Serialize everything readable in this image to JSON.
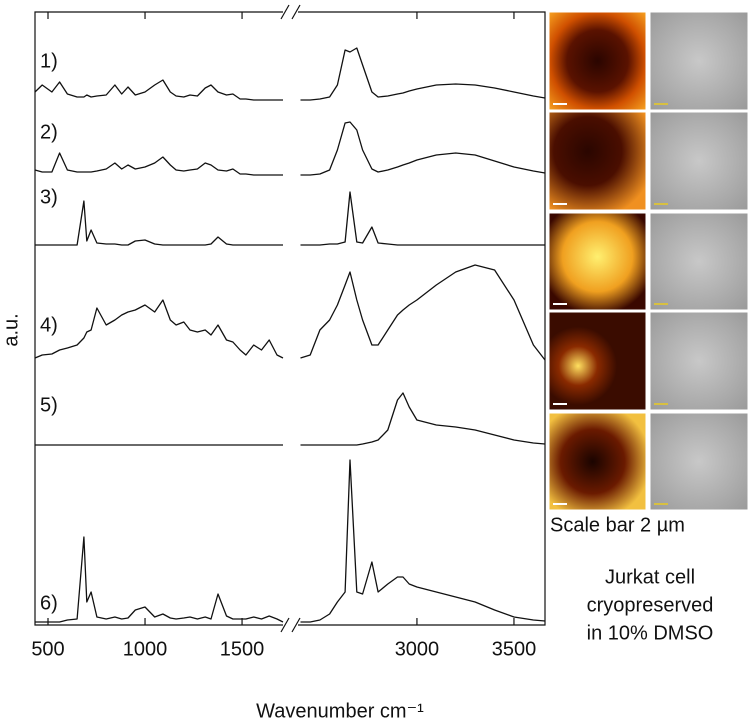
{
  "chart_data": {
    "type": "line",
    "xlabel": "Wavenumber cm⁻¹",
    "ylabel": "a.u.",
    "segments": [
      {
        "xlim": [
          433,
          1711
        ],
        "xticks": [
          500,
          1000,
          1500
        ]
      },
      {
        "xlim": [
          2387,
          3660
        ],
        "xticks": [
          3000,
          3500
        ]
      }
    ],
    "x": [
      433,
      470,
      520,
      560,
      600,
      650,
      685,
      700,
      722,
      752,
      800,
      845,
      880,
      912,
      950,
      1000,
      1050,
      1092,
      1130,
      1160,
      1200,
      1232,
      1270,
      1310,
      1340,
      1376,
      1420,
      1453,
      1490,
      1520,
      1560,
      1600,
      1640,
      1680,
      1711,
      2400,
      2450,
      2500,
      2550,
      2590,
      2630,
      2655,
      2690,
      2720,
      2768,
      2800,
      2850,
      2900,
      2928,
      2960,
      3000,
      3100,
      3200,
      3300,
      3400,
      3500,
      3600,
      3660
    ],
    "series": [
      {
        "name": "1)",
        "color": "#111111",
        "values": [
          8,
          15,
          8,
          18,
          6,
          3,
          3,
          5,
          3,
          4,
          5,
          15,
          6,
          13,
          5,
          8,
          15,
          20,
          8,
          4,
          3,
          5,
          4,
          12,
          15,
          8,
          5,
          6,
          1,
          1,
          0,
          0,
          0,
          0,
          0,
          0,
          0,
          1,
          3,
          15,
          50,
          48,
          52,
          35,
          8,
          3,
          4,
          6,
          7,
          9,
          11,
          15,
          16,
          15,
          12,
          8,
          4,
          2
        ]
      },
      {
        "name": "2)",
        "color": "#111111",
        "values": [
          5,
          3,
          3,
          22,
          5,
          3,
          3,
          3,
          3,
          4,
          6,
          12,
          6,
          10,
          6,
          8,
          12,
          18,
          10,
          5,
          4,
          5,
          6,
          12,
          10,
          5,
          4,
          6,
          1,
          1,
          0,
          0,
          0,
          0,
          0,
          0,
          0,
          1,
          5,
          25,
          52,
          53,
          45,
          25,
          6,
          3,
          5,
          8,
          10,
          12,
          15,
          20,
          22,
          20,
          14,
          8,
          4,
          2
        ]
      },
      {
        "name": "3)",
        "color": "#111111",
        "values": [
          0,
          0,
          0,
          0,
          0,
          0,
          44,
          4,
          15,
          2,
          1,
          1,
          0,
          0,
          4,
          5,
          1,
          0,
          0,
          0,
          0,
          0,
          0,
          0,
          1,
          8,
          1,
          0,
          0,
          0,
          0,
          0,
          0,
          0,
          0,
          0,
          0,
          0,
          1,
          1,
          3,
          53,
          3,
          2,
          18,
          2,
          1,
          0,
          0,
          0,
          0,
          0,
          0,
          0,
          0,
          0,
          0,
          0
        ]
      },
      {
        "name": "4)",
        "color": "#111111",
        "values": [
          2,
          5,
          6,
          10,
          12,
          15,
          22,
          28,
          30,
          52,
          35,
          40,
          45,
          48,
          50,
          55,
          48,
          60,
          40,
          35,
          38,
          30,
          28,
          30,
          25,
          35,
          20,
          18,
          10,
          5,
          15,
          10,
          20,
          5,
          2,
          2,
          5,
          30,
          40,
          55,
          75,
          88,
          60,
          40,
          15,
          15,
          30,
          45,
          50,
          55,
          60,
          75,
          88,
          95,
          90,
          60,
          15,
          0
        ]
      },
      {
        "name": "5)",
        "color": "#111111",
        "values": [
          0,
          0,
          0,
          0,
          0,
          0,
          0,
          0,
          0,
          0,
          0,
          0,
          0,
          0,
          0,
          0,
          0,
          0,
          0,
          0,
          0,
          0,
          0,
          0,
          0,
          0,
          0,
          0,
          0,
          0,
          0,
          0,
          0,
          0,
          0,
          0,
          0,
          0,
          0,
          0,
          0,
          0,
          0,
          1,
          3,
          5,
          15,
          45,
          52,
          38,
          25,
          20,
          18,
          15,
          10,
          5,
          2,
          1
        ]
      },
      {
        "name": "6)",
        "color": "#111111",
        "values": [
          0,
          0,
          0,
          0,
          2,
          3,
          85,
          20,
          30,
          5,
          3,
          5,
          3,
          4,
          12,
          15,
          5,
          8,
          4,
          3,
          4,
          5,
          3,
          5,
          3,
          28,
          6,
          3,
          3,
          3,
          5,
          3,
          6,
          3,
          0,
          0,
          0,
          2,
          8,
          20,
          30,
          162,
          30,
          28,
          60,
          30,
          38,
          45,
          45,
          38,
          35,
          30,
          25,
          20,
          12,
          5,
          2,
          1
        ]
      }
    ],
    "annotations": [
      "Scale bar 2 µm",
      "Jurkat cell",
      "cryopreserved",
      "in 10% DMSO"
    ]
  }
}
